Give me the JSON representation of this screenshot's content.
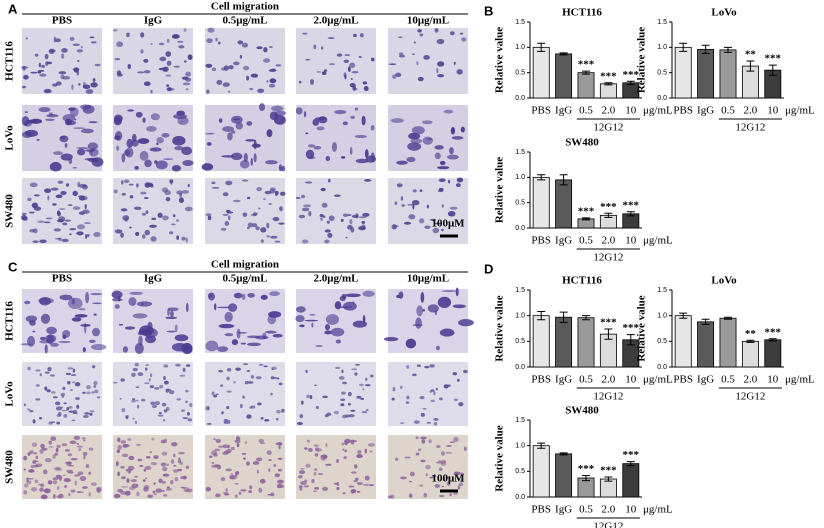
{
  "panel_labels": [
    "A",
    "B",
    "C",
    "D"
  ],
  "image_panels": [
    {
      "title": "Cell migration",
      "columns": [
        "PBS",
        "IgG",
        "0.5μg/mL",
        "2.0μg/mL",
        "10μg/mL"
      ],
      "rows": [
        "HCT116",
        "LoVo",
        "SW480"
      ],
      "scale": "100μM"
    },
    {
      "title": "Cell migration",
      "columns": [
        "PBS",
        "IgG",
        "0.5μg/mL",
        "2.0μg/mL",
        "10μg/mL"
      ],
      "rows": [
        "HCT116",
        "LoVo",
        "SW480"
      ],
      "scale": "100μM"
    }
  ],
  "chart_data": [
    {
      "type": "bar",
      "title": "HCT116",
      "ylabel": "Relative value",
      "categories": [
        "PBS",
        "IgG",
        "0.5",
        "2.0",
        "10"
      ],
      "unit": "μg/mL",
      "group_label": "12G12",
      "values": [
        1.0,
        0.87,
        0.5,
        0.28,
        0.3
      ],
      "errors": [
        0.08,
        0.02,
        0.03,
        0.02,
        0.03
      ],
      "annotations": [
        null,
        null,
        "***",
        "***",
        "***"
      ],
      "colors": [
        "#e6e6e6",
        "#5a5a5a",
        "#9a9a9a",
        "#dcdcdc",
        "#3c3c3c"
      ],
      "ylim": [
        0,
        1.5
      ],
      "yticks": [
        {
          "value": 0,
          "label": "0.0"
        },
        0.5,
        {
          "value": 1,
          "label": "1.0"
        },
        1.5
      ]
    },
    {
      "type": "bar",
      "title": "LoVo",
      "ylabel": "Relative  value",
      "categories": [
        "PBS",
        "IgG",
        "0.5",
        "2.0",
        "10"
      ],
      "unit": "μg/mL",
      "group_label": "12G12",
      "values": [
        1.0,
        0.96,
        0.95,
        0.63,
        0.55
      ],
      "errors": [
        0.08,
        0.08,
        0.05,
        0.1,
        0.1
      ],
      "annotations": [
        null,
        null,
        null,
        "**",
        "***"
      ],
      "colors": [
        "#e6e6e6",
        "#5a5a5a",
        "#9a9a9a",
        "#dcdcdc",
        "#3c3c3c"
      ],
      "ylim": [
        0,
        1.5
      ],
      "yticks": [
        {
          "value": 0,
          "label": "0.0"
        },
        0.5,
        {
          "value": 1,
          "label": "1.0"
        },
        1.5
      ]
    },
    {
      "type": "bar",
      "title": "SW480",
      "ylabel": "Relative  value",
      "categories": [
        "PBS",
        "IgG",
        "0.5",
        "2.0",
        "10"
      ],
      "unit": "μg/mL",
      "group_label": "12G12",
      "values": [
        1.0,
        0.95,
        0.18,
        0.25,
        0.28
      ],
      "errors": [
        0.05,
        0.1,
        0.02,
        0.04,
        0.04
      ],
      "annotations": [
        null,
        null,
        "***",
        "***",
        "***"
      ],
      "colors": [
        "#e6e6e6",
        "#5a5a5a",
        "#9a9a9a",
        "#dcdcdc",
        "#3c3c3c"
      ],
      "ylim": [
        0,
        1.5
      ],
      "yticks": [
        {
          "value": 0,
          "label": "0.0"
        },
        0.5,
        {
          "value": 1,
          "label": "1.0"
        },
        1.5
      ]
    },
    {
      "type": "bar",
      "title": "HCT116",
      "ylabel": "Relative value",
      "categories": [
        "PBS",
        "IgG",
        "0.5",
        "2.0",
        "10"
      ],
      "unit": "μg/mL",
      "group_label": "12G12",
      "values": [
        1.0,
        0.97,
        0.96,
        0.64,
        0.53
      ],
      "errors": [
        0.08,
        0.1,
        0.04,
        0.1,
        0.1
      ],
      "annotations": [
        null,
        null,
        null,
        "***",
        "***"
      ],
      "colors": [
        "#e6e6e6",
        "#5a5a5a",
        "#9a9a9a",
        "#dcdcdc",
        "#3c3c3c"
      ],
      "ylim": [
        0,
        1.5
      ],
      "yticks": [
        {
          "value": 0,
          "label": "0.0"
        },
        0.5,
        {
          "value": 1,
          "label": "1.0"
        },
        1.5
      ]
    },
    {
      "type": "bar",
      "title": "LoVo",
      "ylabel": "Relative value",
      "categories": [
        "PBS",
        "IgG",
        "0.5",
        "2.0",
        "10"
      ],
      "unit": "μg/mL",
      "group_label": "12G12",
      "values": [
        1.0,
        0.88,
        0.95,
        0.5,
        0.53
      ],
      "errors": [
        0.05,
        0.05,
        0.02,
        0.02,
        0.02
      ],
      "annotations": [
        null,
        null,
        null,
        "**",
        "***"
      ],
      "colors": [
        "#e6e6e6",
        "#5a5a5a",
        "#9a9a9a",
        "#dcdcdc",
        "#3c3c3c"
      ],
      "ylim": [
        0,
        1.5
      ],
      "yticks": [
        {
          "value": 0,
          "label": "0.0"
        },
        0.5,
        {
          "value": 1,
          "label": "1.0"
        },
        1.5
      ]
    },
    {
      "type": "bar",
      "title": "SW480",
      "ylabel": "Relative value",
      "categories": [
        "PBS",
        "IgG",
        "0.5",
        "2.0",
        "10"
      ],
      "unit": "μg/mL",
      "group_label": "12G12",
      "values": [
        1.0,
        0.84,
        0.37,
        0.35,
        0.65
      ],
      "errors": [
        0.05,
        0.02,
        0.05,
        0.04,
        0.04
      ],
      "annotations": [
        null,
        null,
        "***",
        "***",
        "***"
      ],
      "colors": [
        "#e6e6e6",
        "#5a5a5a",
        "#9a9a9a",
        "#dcdcdc",
        "#3c3c3c"
      ],
      "ylim": [
        0,
        1.5
      ],
      "yticks": [
        {
          "value": 0,
          "label": "0.0"
        },
        0.5,
        {
          "value": 1,
          "label": "1.0"
        },
        1.5
      ]
    }
  ]
}
